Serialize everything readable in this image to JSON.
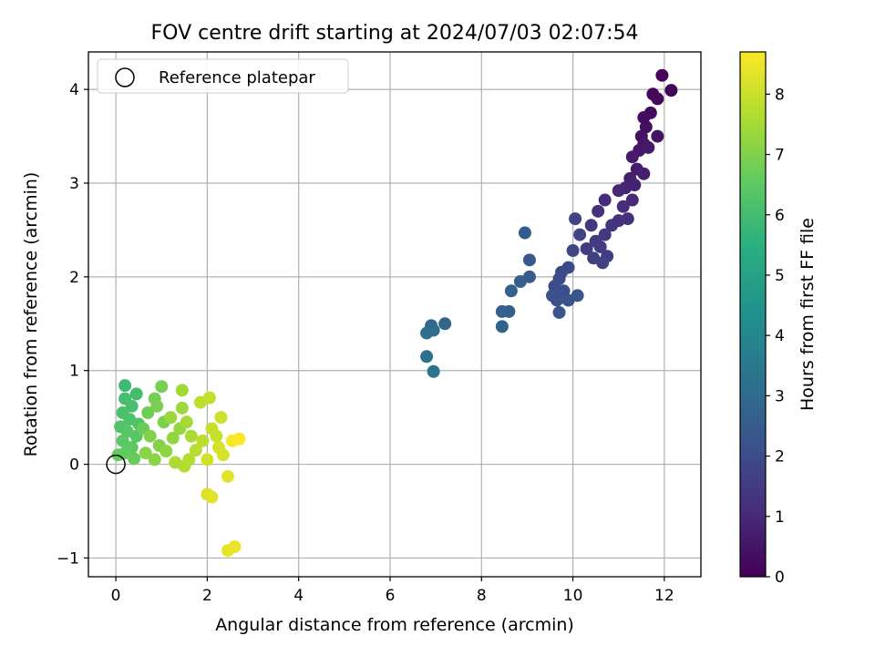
{
  "chart_data": {
    "type": "scatter",
    "title": "FOV centre drift starting at 2024/07/03 02:07:54",
    "xlabel": "Angular distance from reference (arcmin)",
    "ylabel": "Rotation from reference (arcmin)",
    "colorbar_label": "Hours from first FF file",
    "xlim": [
      -0.6,
      12.8
    ],
    "ylim": [
      -1.2,
      4.4
    ],
    "clim": [
      0,
      8.7
    ],
    "xticks": [
      0,
      2,
      4,
      6,
      8,
      10,
      12
    ],
    "yticks": [
      -1,
      0,
      1,
      2,
      3,
      4
    ],
    "cticks": [
      0,
      1,
      2,
      3,
      4,
      5,
      6,
      7,
      8
    ],
    "grid": true,
    "colormap": "viridis",
    "legend": {
      "location": "top-left",
      "entries": [
        "Reference platepar"
      ]
    },
    "reference_point": {
      "x": 0,
      "y": 0
    },
    "series": [
      {
        "points": [
          [
            11.95,
            4.15,
            0.05
          ],
          [
            12.15,
            3.99,
            0.1
          ],
          [
            11.75,
            3.95,
            0.15
          ],
          [
            11.85,
            3.9,
            0.2
          ],
          [
            11.7,
            3.75,
            0.25
          ],
          [
            11.55,
            3.7,
            0.3
          ],
          [
            11.6,
            3.6,
            0.35
          ],
          [
            11.5,
            3.5,
            0.4
          ],
          [
            11.85,
            3.5,
            0.45
          ],
          [
            11.55,
            3.42,
            0.5
          ],
          [
            11.45,
            3.35,
            0.55
          ],
          [
            11.65,
            3.38,
            0.6
          ],
          [
            11.3,
            3.28,
            0.65
          ],
          [
            11.4,
            3.15,
            0.7
          ],
          [
            11.55,
            3.1,
            0.75
          ],
          [
            11.25,
            3.05,
            0.8
          ],
          [
            11.35,
            2.98,
            0.85
          ],
          [
            11.15,
            2.95,
            0.9
          ],
          [
            11.0,
            2.92,
            0.95
          ],
          [
            11.3,
            2.82,
            1.0
          ],
          [
            10.7,
            2.82,
            1.05
          ],
          [
            11.1,
            2.75,
            1.1
          ],
          [
            11.2,
            2.62,
            1.15
          ],
          [
            10.55,
            2.7,
            1.2
          ],
          [
            11.0,
            2.6,
            1.25
          ],
          [
            10.85,
            2.55,
            1.3
          ],
          [
            10.4,
            2.55,
            1.35
          ],
          [
            10.7,
            2.45,
            1.4
          ],
          [
            10.5,
            2.38,
            1.45
          ],
          [
            10.3,
            2.3,
            1.5
          ],
          [
            10.6,
            2.32,
            1.55
          ],
          [
            10.75,
            2.22,
            1.6
          ],
          [
            10.45,
            2.2,
            1.65
          ],
          [
            10.65,
            2.15,
            1.7
          ],
          [
            10.05,
            2.62,
            1.75
          ],
          [
            10.15,
            2.45,
            1.8
          ],
          [
            10.0,
            2.28,
            1.85
          ],
          [
            9.9,
            2.1,
            1.9
          ],
          [
            9.75,
            2.05,
            1.95
          ],
          [
            9.7,
            1.98,
            2.0
          ],
          [
            9.6,
            1.9,
            2.05
          ],
          [
            9.8,
            1.85,
            2.1
          ],
          [
            9.55,
            1.8,
            2.15
          ],
          [
            9.65,
            1.75,
            2.2
          ],
          [
            9.9,
            1.75,
            2.25
          ],
          [
            10.1,
            1.8,
            2.3
          ],
          [
            9.7,
            1.62,
            2.35
          ],
          [
            9.05,
            2.18,
            2.4
          ],
          [
            8.95,
            2.47,
            2.45
          ],
          [
            9.05,
            2.0,
            2.5
          ],
          [
            8.85,
            1.95,
            2.55
          ],
          [
            8.65,
            1.85,
            2.6
          ],
          [
            8.45,
            1.63,
            2.65
          ],
          [
            8.6,
            1.63,
            2.7
          ],
          [
            8.45,
            1.47,
            2.75
          ],
          [
            7.2,
            1.5,
            2.85
          ],
          [
            6.9,
            1.48,
            2.95
          ],
          [
            6.95,
            1.43,
            3.05
          ],
          [
            6.8,
            1.4,
            3.15
          ],
          [
            6.8,
            1.15,
            3.25
          ],
          [
            6.95,
            0.99,
            3.35
          ],
          [
            0.2,
            0.84,
            5.9
          ],
          [
            0.45,
            0.75,
            6.0
          ],
          [
            0.2,
            0.7,
            6.05
          ],
          [
            0.35,
            0.62,
            6.1
          ],
          [
            0.15,
            0.55,
            6.15
          ],
          [
            0.3,
            0.48,
            6.2
          ],
          [
            0.5,
            0.43,
            6.25
          ],
          [
            0.1,
            0.4,
            6.3
          ],
          [
            0.25,
            0.35,
            6.35
          ],
          [
            0.45,
            0.3,
            6.4
          ],
          [
            0.15,
            0.25,
            6.45
          ],
          [
            0.35,
            0.18,
            6.5
          ],
          [
            0.2,
            0.12,
            6.55
          ],
          [
            0.05,
            0.1,
            6.6
          ],
          [
            0.4,
            0.06,
            6.65
          ],
          [
            0.6,
            0.38,
            6.7
          ],
          [
            0.7,
            0.55,
            6.75
          ],
          [
            0.85,
            0.7,
            6.8
          ],
          [
            1.0,
            0.83,
            6.85
          ],
          [
            0.9,
            0.62,
            6.9
          ],
          [
            1.05,
            0.45,
            6.95
          ],
          [
            0.75,
            0.3,
            7.0
          ],
          [
            0.95,
            0.2,
            7.05
          ],
          [
            0.65,
            0.12,
            7.1
          ],
          [
            0.85,
            0.05,
            7.15
          ],
          [
            1.1,
            0.14,
            7.2
          ],
          [
            1.25,
            0.28,
            7.25
          ],
          [
            1.4,
            0.38,
            7.3
          ],
          [
            1.2,
            0.5,
            7.35
          ],
          [
            1.45,
            0.6,
            7.4
          ],
          [
            1.45,
            0.79,
            7.45
          ],
          [
            1.55,
            0.45,
            7.5
          ],
          [
            1.65,
            0.3,
            7.55
          ],
          [
            1.3,
            0.02,
            7.6
          ],
          [
            1.5,
            -0.02,
            7.65
          ],
          [
            1.6,
            0.05,
            7.7
          ],
          [
            1.75,
            0.15,
            7.75
          ],
          [
            1.9,
            0.25,
            7.8
          ],
          [
            1.85,
            0.66,
            7.85
          ],
          [
            2.05,
            0.71,
            7.9
          ],
          [
            2.1,
            0.38,
            7.95
          ],
          [
            2.2,
            0.3,
            8.0
          ],
          [
            2.3,
            0.5,
            8.05
          ],
          [
            2.0,
            0.05,
            8.1
          ],
          [
            2.25,
            0.18,
            8.15
          ],
          [
            2.35,
            0.1,
            8.2
          ],
          [
            2.0,
            -0.32,
            8.25
          ],
          [
            2.1,
            -0.35,
            8.3
          ],
          [
            2.45,
            -0.13,
            8.35
          ],
          [
            2.45,
            -0.92,
            8.4
          ],
          [
            2.6,
            -0.88,
            8.45
          ],
          [
            2.55,
            0.25,
            8.6
          ],
          [
            2.7,
            0.27,
            8.7
          ]
        ]
      }
    ]
  }
}
